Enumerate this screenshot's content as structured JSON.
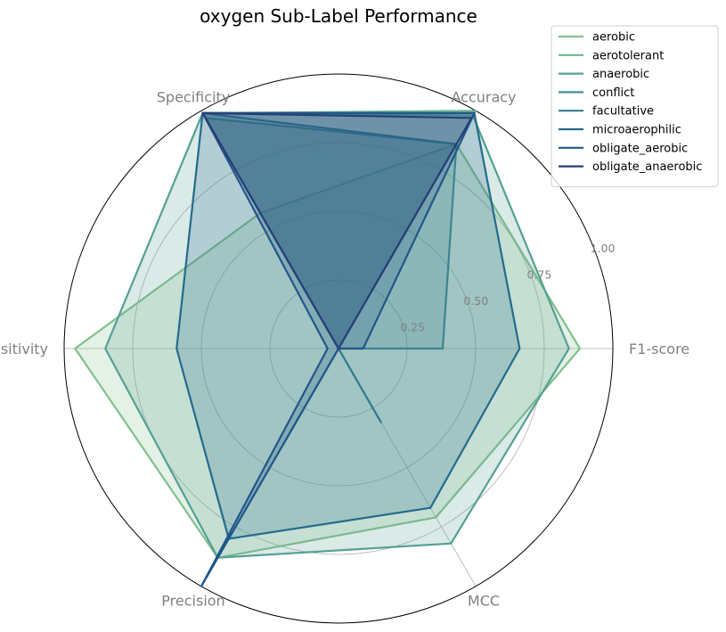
{
  "chart_data": {
    "type": "radar",
    "title": "oxygen Sub-Label Performance",
    "axes": [
      "F1-score",
      "Accuracy",
      "Specificity",
      "Sensitivity",
      "Precision",
      "MCC"
    ],
    "rlim": [
      0,
      1
    ],
    "r_ticks": [
      0.25,
      0.5,
      0.75,
      1.0
    ],
    "r_tick_labels": [
      "0.25",
      "0.50",
      "0.75",
      "1.00"
    ],
    "grid": true,
    "legend_position": "top-right",
    "series": [
      {
        "name": "aerobic",
        "values": [
          0.88,
          0.86,
          0.57,
          0.96,
          0.88,
          0.71
        ],
        "color": "#82c08e"
      },
      {
        "name": "aerotolerant",
        "values": [
          0.0,
          1.0,
          0.99,
          0.0,
          1.0,
          0.0
        ],
        "color": "#6db391"
      },
      {
        "name": "anaerobic",
        "values": [
          0.84,
          0.98,
          0.99,
          0.85,
          0.88,
          0.82
        ],
        "color": "#55a093"
      },
      {
        "name": "conflict",
        "values": [
          0.38,
          0.86,
          0.97,
          0.0,
          0.38,
          0.0
        ],
        "color": "#458e91"
      },
      {
        "name": "facultative",
        "values": [
          0.0,
          0.86,
          0.99,
          0.0,
          0.0,
          0.31
        ],
        "color": "#327d8f"
      },
      {
        "name": "microaerophilic",
        "values": [
          0.66,
          0.99,
          0.99,
          0.59,
          0.8,
          0.67
        ],
        "color": "#236b8c"
      },
      {
        "name": "obligate_aerobic",
        "values": [
          0.09,
          0.99,
          0.99,
          0.04,
          1.0,
          0.0
        ],
        "color": "#21568a"
      },
      {
        "name": "obligate_anaerobic",
        "values": [
          0.0,
          0.97,
          0.99,
          0.0,
          0.0,
          0.0
        ],
        "color": "#273f78"
      }
    ]
  }
}
